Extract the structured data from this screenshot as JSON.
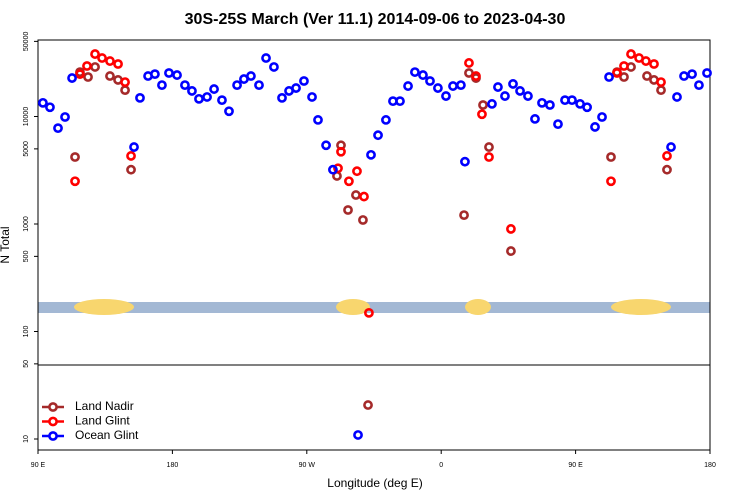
{
  "chart_data": {
    "type": "scatter",
    "title": "30S-25S March (Ver 11.1)   2014-09-06 to 2023-04-30",
    "xlabel": "Longitude (deg E)",
    "ylabel": "N Total",
    "log_y": true,
    "legend": "lower left",
    "xlim": [
      90,
      540
    ],
    "xticks": [
      {
        "value": 90,
        "label": "90 E"
      },
      {
        "value": 180,
        "label": "180"
      },
      {
        "value": 270,
        "label": "90 W"
      },
      {
        "value": 360,
        "label": "0"
      },
      {
        "value": 450,
        "label": "90 E"
      },
      {
        "value": 540,
        "label": "180"
      }
    ],
    "ylim": [
      7.9,
      51500
    ],
    "yticks": [
      10,
      50,
      100,
      500,
      1000,
      5000,
      10000,
      50000
    ],
    "series": [
      {
        "name": "Land Nadir",
        "color": "#a52a2a",
        "x": [
          114.8,
          118.1,
          123.5,
          128.2,
          138.2,
          143.6,
          148.3,
          152.3,
          290.2,
          292.9,
          297.6,
          302.9,
          307.6,
          311.0,
          375.3,
          378.6,
          383.3,
          388.0,
          392.0,
          406.7,
          473.7,
          477.7,
          482.4,
          487.1,
          497.8,
          502.5,
          507.2,
          511.2
        ],
        "values": [
          4200,
          25900,
          23300,
          28900,
          23800,
          21900,
          17600,
          3200,
          2800,
          5400,
          1350,
          1860,
          1090,
          20.7,
          1210,
          25400,
          22800,
          12800,
          5200,
          560,
          4200,
          25900,
          23300,
          28900,
          23800,
          21900,
          17600,
          3200
        ]
      },
      {
        "name": "Land Glint",
        "color": "#ff0000",
        "x": [
          114.8,
          118.1,
          122.8,
          128.2,
          132.9,
          138.2,
          143.6,
          148.3,
          152.3,
          290.9,
          292.9,
          298.2,
          303.6,
          308.3,
          311.6,
          378.6,
          383.3,
          387.3,
          392.0,
          406.7,
          473.7,
          477.7,
          482.4,
          487.1,
          492.5,
          497.1,
          502.5,
          507.2,
          511.2
        ],
        "values": [
          2500,
          24800,
          29500,
          38100,
          35000,
          32800,
          30800,
          20900,
          4300,
          3300,
          4700,
          2500,
          3100,
          1800,
          149,
          31500,
          23800,
          10500,
          4200,
          900,
          2500,
          25400,
          29500,
          38100,
          35000,
          32800,
          30800,
          20900,
          4300
        ]
      },
      {
        "name": "Ocean Glint",
        "color": "#0000ff",
        "x": [
          93.3,
          98.0,
          103.4,
          108.1,
          112.8,
          154.3,
          158.3,
          163.7,
          168.3,
          173.0,
          177.7,
          183.1,
          188.4,
          193.1,
          197.8,
          203.2,
          207.9,
          213.2,
          217.9,
          223.3,
          227.9,
          232.6,
          238.0,
          242.7,
          248.0,
          253.4,
          258.1,
          262.8,
          268.1,
          273.5,
          277.5,
          282.9,
          287.5,
          313.0,
          317.7,
          323.0,
          327.7,
          332.4,
          337.8,
          342.4,
          347.8,
          352.5,
          357.8,
          363.2,
          367.9,
          373.2,
          375.9,
          394.0,
          398.0,
          402.7,
          408.1,
          412.8,
          418.1,
          422.8,
          427.5,
          432.8,
          438.2,
          442.9,
          447.6,
          453.0,
          457.7,
          463.0,
          467.7,
          472.4,
          513.9,
          517.9,
          522.6,
          528.0,
          532.6,
          538.0,
          304.3
        ],
        "values": [
          13400,
          12200,
          7800,
          9900,
          22800,
          5200,
          14900,
          23800,
          24800,
          19600,
          25400,
          24300,
          19600,
          17300,
          14600,
          15200,
          18000,
          14200,
          11200,
          19600,
          22300,
          23800,
          19600,
          35000,
          28900,
          14900,
          17300,
          18400,
          21400,
          15200,
          9300,
          5400,
          3200,
          4400,
          6700,
          9300,
          13900,
          13900,
          19200,
          25900,
          24300,
          21400,
          18400,
          15500,
          19200,
          19600,
          3800,
          13100,
          18800,
          15500,
          20100,
          17300,
          15500,
          9500,
          13400,
          12800,
          8500,
          14200,
          14200,
          13100,
          12200,
          8000,
          9900,
          23300,
          5200,
          15200,
          23800,
          24800,
          19600,
          25400,
          10.9
        ]
      }
    ]
  }
}
